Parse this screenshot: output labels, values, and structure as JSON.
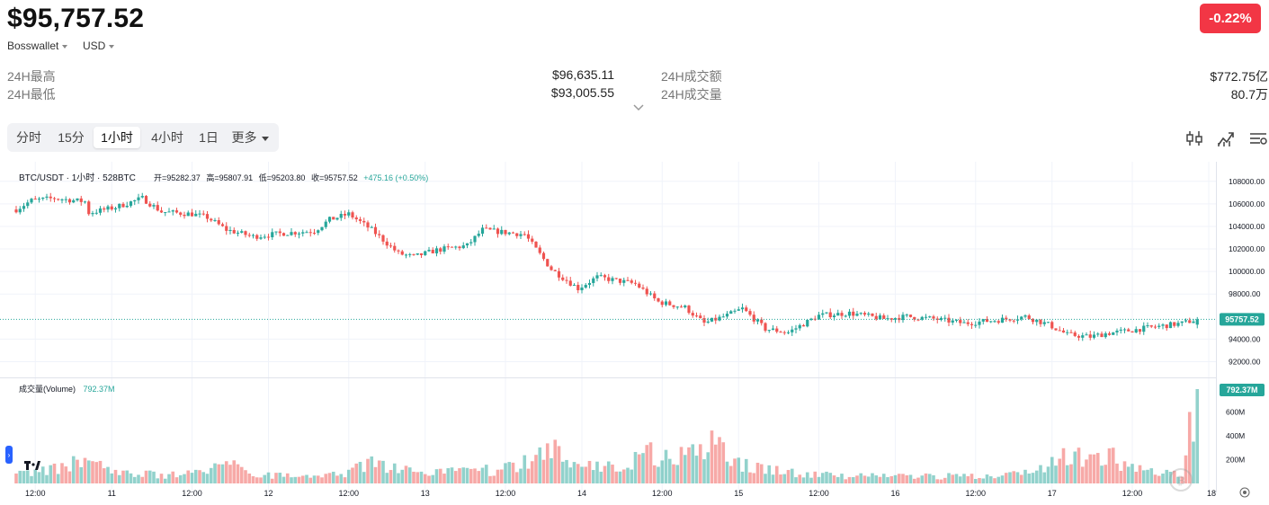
{
  "header": {
    "price": "$95,757.52",
    "exchange": "Bosswallet",
    "currency": "USD",
    "change": "-0.22%"
  },
  "stats": {
    "high_label": "24H最高",
    "high_value": "$96,635.11",
    "low_label": "24H最低",
    "low_value": "$93,005.55",
    "amount_label": "24H成交额",
    "amount_value": "$772.75亿",
    "volume_label": "24H成交量",
    "volume_value": "80.7万"
  },
  "tabs": [
    {
      "label": "分时"
    },
    {
      "label": "15分"
    },
    {
      "label": "1小时"
    },
    {
      "label": "4小时"
    },
    {
      "label": "1日"
    },
    {
      "label": "更多"
    }
  ],
  "active_tab": "1小时",
  "tool_icons": [
    "candlestick-settings-icon",
    "indicator-icon",
    "chart-settings-icon"
  ],
  "chart_data": {
    "type": "candlestick",
    "symbol_line": "BTC/USDT · 1小时 · 528BTC",
    "ohlc_labels": {
      "open": "开=95282.37",
      "high": "高=95807.91",
      "low": "低=95203.80",
      "close": "收=95757.52",
      "change": "+475.16 (+0.50%)"
    },
    "y_ticks": [
      "108000.00",
      "106000.00",
      "104000.00",
      "102000.00",
      "100000.00",
      "98000.00",
      "94000.00",
      "92000.00"
    ],
    "y_tick_values": [
      108000,
      106000,
      104000,
      102000,
      100000,
      98000,
      94000,
      92000
    ],
    "ylim": [
      91000,
      109100
    ],
    "last_price_label": "95757.52",
    "x_ticks": [
      "12:00",
      "11",
      "12:00",
      "12",
      "12:00",
      "13",
      "12:00",
      "14",
      "12:00",
      "15",
      "12:00",
      "16",
      "12:00",
      "17",
      "12:00",
      "18"
    ],
    "volume_label": "成交量(Volume)",
    "volume_value": "792.37M",
    "volume_ticks": [
      "600M",
      "400M",
      "200M"
    ],
    "volume_tick_values": [
      600,
      400,
      200
    ],
    "volume_last_label": "792.37M",
    "close_anchors": [
      [
        0,
        105500
      ],
      [
        4,
        106300
      ],
      [
        10,
        106500
      ],
      [
        18,
        106200
      ],
      [
        19,
        105200
      ],
      [
        26,
        105700
      ],
      [
        33,
        106500
      ],
      [
        38,
        105300
      ],
      [
        46,
        105100
      ],
      [
        50,
        104800
      ],
      [
        55,
        103700
      ],
      [
        62,
        103100
      ],
      [
        70,
        103400
      ],
      [
        78,
        103600
      ],
      [
        82,
        104600
      ],
      [
        87,
        105100
      ],
      [
        93,
        103700
      ],
      [
        100,
        101600
      ],
      [
        104,
        101300
      ],
      [
        110,
        101900
      ],
      [
        118,
        102300
      ],
      [
        122,
        103700
      ],
      [
        127,
        103500
      ],
      [
        133,
        103300
      ],
      [
        140,
        100200
      ],
      [
        147,
        98500
      ],
      [
        152,
        99500
      ],
      [
        162,
        98900
      ],
      [
        168,
        97300
      ],
      [
        175,
        96800
      ],
      [
        180,
        95400
      ],
      [
        186,
        96100
      ],
      [
        190,
        96700
      ],
      [
        196,
        94900
      ],
      [
        202,
        94600
      ],
      [
        210,
        96100
      ],
      [
        218,
        96300
      ],
      [
        227,
        95800
      ],
      [
        233,
        96000
      ],
      [
        240,
        95800
      ],
      [
        248,
        95400
      ],
      [
        257,
        95700
      ],
      [
        264,
        96000
      ],
      [
        270,
        95300
      ],
      [
        275,
        94400
      ],
      [
        281,
        94200
      ],
      [
        285,
        94500
      ],
      [
        290,
        94700
      ],
      [
        296,
        95000
      ],
      [
        305,
        95400
      ],
      [
        309,
        95757.52
      ]
    ],
    "volume_anchors": [
      [
        0,
        70
      ],
      [
        12,
        130
      ],
      [
        16,
        180
      ],
      [
        24,
        120
      ],
      [
        30,
        80
      ],
      [
        40,
        70
      ],
      [
        48,
        80
      ],
      [
        52,
        180
      ],
      [
        58,
        130
      ],
      [
        62,
        80
      ],
      [
        70,
        60
      ],
      [
        80,
        70
      ],
      [
        86,
        80
      ],
      [
        94,
        190
      ],
      [
        100,
        130
      ],
      [
        108,
        90
      ],
      [
        116,
        100
      ],
      [
        124,
        110
      ],
      [
        130,
        140
      ],
      [
        136,
        240
      ],
      [
        140,
        310
      ],
      [
        144,
        240
      ],
      [
        150,
        150
      ],
      [
        156,
        140
      ],
      [
        161,
        180
      ],
      [
        166,
        270
      ],
      [
        172,
        200
      ],
      [
        178,
        240
      ],
      [
        182,
        320
      ],
      [
        188,
        180
      ],
      [
        196,
        130
      ],
      [
        206,
        80
      ],
      [
        218,
        60
      ],
      [
        232,
        60
      ],
      [
        248,
        60
      ],
      [
        262,
        80
      ],
      [
        270,
        160
      ],
      [
        275,
        240
      ],
      [
        282,
        190
      ],
      [
        287,
        210
      ],
      [
        293,
        120
      ],
      [
        300,
        80
      ],
      [
        305,
        80
      ],
      [
        309,
        792
      ]
    ]
  }
}
